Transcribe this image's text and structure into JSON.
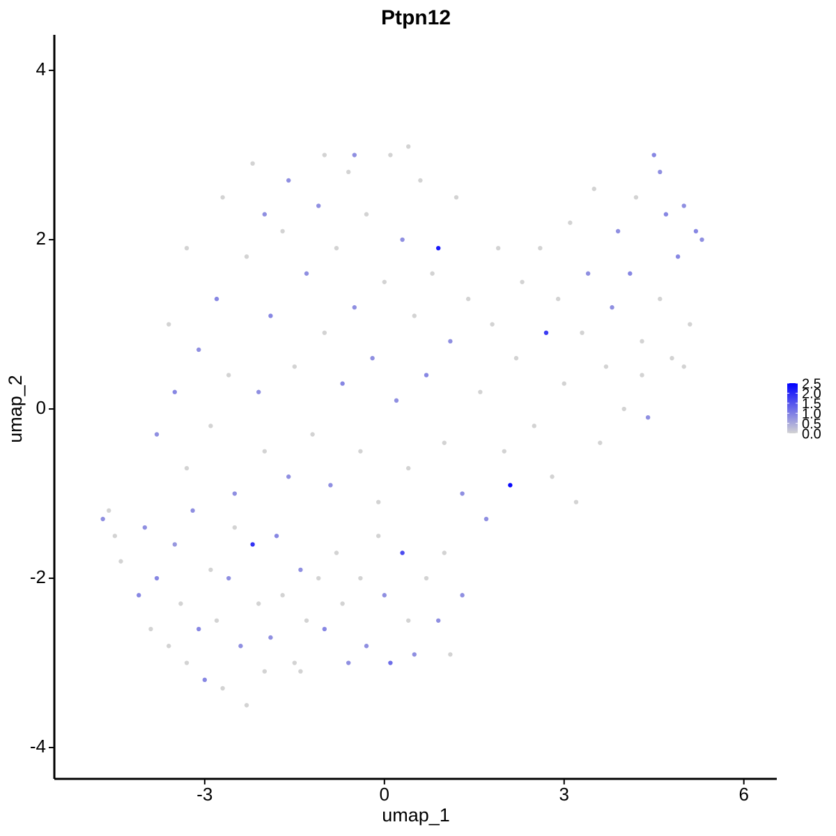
{
  "chart_data": {
    "type": "scatter",
    "title": "Ptpn12",
    "x_label": "umap_1",
    "y_label": "umap_2",
    "xlim": [
      -5.51,
      6.55
    ],
    "ylim": [
      -4.37,
      4.42
    ],
    "xticks": [
      -3,
      0,
      3,
      6
    ],
    "yticks": [
      -4,
      -2,
      0,
      2,
      4
    ],
    "low_color": "#d3d3d3",
    "high_color": "#0000ff",
    "colorbar_lim": [
      0,
      2.5
    ],
    "colorbar_ticks": [
      {
        "value": 0,
        "label": "0.0"
      },
      0.5,
      {
        "value": 1,
        "label": "1.0"
      },
      1.5,
      {
        "value": 2,
        "label": "2.0"
      },
      2.5
    ],
    "x": [
      -4.6,
      -4.7,
      -4.5,
      -4.4,
      -4.1,
      -4.0,
      -3.9,
      -3.8,
      -3.6,
      -3.5,
      -3.4,
      -3.3,
      -3.2,
      -3.1,
      -3.0,
      -2.9,
      -2.8,
      -2.7,
      -2.6,
      -2.5,
      -2.4,
      -2.3,
      -2.2,
      -2.1,
      -2.0,
      -1.9,
      -1.8,
      -1.7,
      -1.5,
      -1.4,
      -1.3,
      -1.4,
      -1.1,
      -1.0,
      -0.8,
      -0.7,
      -0.6,
      -0.4,
      -0.3,
      -0.1,
      0.0,
      0.1,
      0.3,
      0.4,
      0.5,
      0.7,
      0.9,
      1.0,
      1.1,
      1.3,
      -3.8,
      -3.5,
      -3.3,
      -3.1,
      -2.9,
      -2.8,
      -2.6,
      -2.5,
      -2.3,
      -2.1,
      -2.0,
      -1.9,
      -1.7,
      -1.6,
      -1.5,
      -1.3,
      -1.2,
      -1.1,
      -1.0,
      -0.9,
      -0.8,
      -0.7,
      -0.6,
      -0.5,
      -0.4,
      -0.3,
      -0.2,
      -0.1,
      0.0,
      0.1,
      0.2,
      0.3,
      0.4,
      0.5,
      0.6,
      0.7,
      0.8,
      0.9,
      1.0,
      1.1,
      1.2,
      1.3,
      1.4,
      -2.7,
      -2.2,
      -1.6,
      -1.0,
      -0.5,
      0.4,
      -3.3,
      -3.6,
      -2.0,
      1.6,
      1.7,
      1.8,
      1.9,
      2.0,
      2.1,
      2.2,
      2.3,
      2.5,
      2.6,
      2.7,
      2.8,
      2.9,
      3.0,
      3.1,
      3.2,
      3.3,
      3.4,
      3.5,
      3.6,
      3.7,
      3.8,
      3.9,
      4.0,
      4.1,
      4.2,
      4.3,
      4.4,
      4.5,
      4.6,
      4.7,
      4.8,
      4.9,
      5.0,
      5.1,
      5.2,
      5.3,
      4.6,
      4.3,
      5.0
    ],
    "y": [
      -1.2,
      -1.3,
      -1.5,
      -1.8,
      -2.2,
      -1.4,
      -2.6,
      -2.0,
      -2.8,
      -1.6,
      -2.3,
      -3.0,
      -1.2,
      -2.6,
      -3.2,
      -1.9,
      -2.5,
      -3.3,
      -2.0,
      -1.4,
      -2.8,
      -3.5,
      -1.6,
      -2.3,
      -3.1,
      -2.7,
      -1.5,
      -2.2,
      -3.0,
      -1.9,
      -2.5,
      -3.1,
      -2.0,
      -2.6,
      -1.7,
      -2.3,
      -3.0,
      -2.0,
      -2.8,
      -1.5,
      -2.2,
      -3.0,
      -1.7,
      -2.5,
      -2.9,
      -2.0,
      -2.5,
      -1.7,
      -2.9,
      -2.2,
      -0.3,
      0.2,
      -0.7,
      0.7,
      -0.2,
      1.3,
      0.4,
      -1.0,
      1.8,
      0.2,
      -0.5,
      1.1,
      2.1,
      -0.8,
      0.5,
      1.6,
      -0.3,
      2.4,
      0.9,
      -0.9,
      1.9,
      0.3,
      2.8,
      1.2,
      -0.5,
      2.3,
      0.6,
      -1.1,
      1.5,
      3.0,
      0.1,
      2.0,
      -0.7,
      1.1,
      2.7,
      0.4,
      1.6,
      1.9,
      -0.4,
      0.8,
      2.5,
      -1.0,
      1.3,
      2.5,
      2.9,
      2.7,
      3.0,
      3.0,
      3.1,
      1.9,
      1.0,
      2.3,
      0.2,
      -1.3,
      1.0,
      1.9,
      -0.5,
      -0.9,
      0.6,
      1.5,
      -0.2,
      1.9,
      0.9,
      -0.8,
      1.3,
      0.3,
      2.2,
      -1.1,
      0.9,
      1.6,
      2.6,
      -0.4,
      0.5,
      1.2,
      2.1,
      0.0,
      1.6,
      2.5,
      0.8,
      -0.1,
      3.0,
      1.3,
      2.3,
      0.6,
      1.8,
      2.4,
      1.0,
      2.1,
      2.0,
      2.8,
      0.4,
      0.5
    ],
    "values": [
      0,
      0.8,
      0,
      0,
      0.9,
      0.8,
      0,
      0.9,
      0,
      0.7,
      0,
      0,
      0.8,
      0.9,
      0.9,
      0,
      0,
      0,
      0.8,
      0,
      0.8,
      0,
      1.9,
      0,
      0,
      0.8,
      0.9,
      0,
      0,
      0.8,
      0,
      0,
      0,
      0.9,
      0,
      0,
      0.8,
      0,
      0.8,
      0,
      0.8,
      1.2,
      1.6,
      0,
      0.8,
      0,
      0.8,
      0,
      0,
      0.8,
      0.8,
      0.9,
      0,
      0.8,
      0,
      0.9,
      0,
      0.8,
      0,
      0.8,
      0,
      0.9,
      0,
      0.8,
      0,
      0.8,
      0,
      0.8,
      0,
      0.8,
      0,
      0.9,
      0,
      0.8,
      0,
      0,
      0.8,
      0,
      0,
      0,
      0.8,
      0.8,
      0,
      0,
      0,
      0.9,
      0,
      2.2,
      0,
      0.8,
      0,
      0.8,
      0,
      0,
      0,
      0.8,
      0,
      0.8,
      0,
      0,
      0,
      0.8,
      0,
      0.8,
      0,
      0,
      0,
      2.4,
      0,
      0,
      0,
      0,
      1.8,
      0,
      0,
      0,
      0,
      0,
      0,
      0.8,
      0,
      0,
      0,
      0.8,
      0.8,
      0,
      0.9,
      0,
      0,
      0.8,
      0.9,
      0,
      0.9,
      0,
      0.9,
      0.8,
      0,
      0.9,
      0.8,
      0.8,
      0,
      0
    ]
  }
}
